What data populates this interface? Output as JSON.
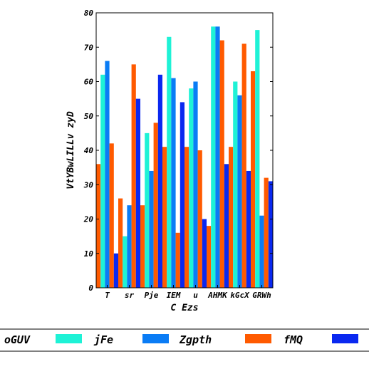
{
  "chart_data": {
    "type": "bar",
    "xlabel": "C Ezs",
    "ylabel": "VtYBwLILLv zyD",
    "ylim": [
      0,
      80
    ],
    "yticks": [
      0,
      10,
      20,
      30,
      40,
      50,
      60,
      70,
      80
    ],
    "grid": false,
    "legend_position": "bottom",
    "categories": [
      "T",
      "sr",
      "Pje",
      "IEM",
      "u",
      "AHMK",
      "kGcX",
      "GRWh"
    ],
    "series": [
      {
        "name": "oGUV",
        "color": "#ff5a00",
        "values": [
          36,
          26,
          24,
          41,
          41,
          18,
          41,
          63
        ]
      },
      {
        "name": "jFe",
        "color": "#1ef2d6",
        "values": [
          62,
          15,
          45,
          73,
          58,
          76,
          60,
          75
        ]
      },
      {
        "name": "Zgpth",
        "color": "#0a7cf5",
        "values": [
          66,
          24,
          34,
          61,
          60,
          76,
          56,
          21
        ]
      },
      {
        "name": "fMQ",
        "color": "#ff5a00",
        "values": [
          42,
          65,
          48,
          16,
          40,
          72,
          71,
          32
        ]
      },
      {
        "name": "",
        "color": "#0a28f0",
        "values": [
          10,
          55,
          62,
          54,
          20,
          36,
          34,
          31
        ]
      }
    ]
  }
}
